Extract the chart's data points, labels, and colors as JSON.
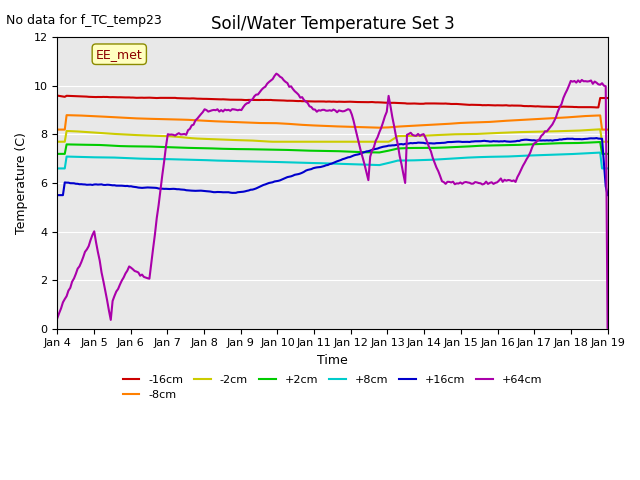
{
  "title": "Soil/Water Temperature Set 3",
  "xlabel": "Time",
  "ylabel": "Temperature (C)",
  "no_data_text": "No data for f_TC_temp23",
  "annotation_text": "EE_met",
  "xlim": [
    0,
    15
  ],
  "ylim": [
    0,
    12
  ],
  "yticks": [
    0,
    2,
    4,
    6,
    8,
    10,
    12
  ],
  "xtick_labels": [
    "Jan 4",
    "Jan 5",
    "Jan 6",
    "Jan 7",
    "Jan 8",
    "Jan 9",
    "Jan 10",
    "Jan 11",
    "Jan 12",
    "Jan 13",
    "Jan 14",
    "Jan 15",
    "Jan 16",
    "Jan 17",
    "Jan 18",
    "Jan 19"
  ],
  "background_color": "#e8e8e8",
  "series": {
    "-16cm": {
      "color": "#cc0000",
      "lw": 1.5
    },
    "-8cm": {
      "color": "#ff8000",
      "lw": 1.5
    },
    "-2cm": {
      "color": "#cccc00",
      "lw": 1.5
    },
    "+2cm": {
      "color": "#00cc00",
      "lw": 1.5
    },
    "+8cm": {
      "color": "#00cccc",
      "lw": 1.5
    },
    "+16cm": {
      "color": "#0000cc",
      "lw": 1.5
    },
    "+64cm": {
      "color": "#aa00aa",
      "lw": 1.5
    }
  },
  "legend_colors": {
    "-16cm": "#cc0000",
    "-8cm": "#ff8000",
    "-2cm": "#cccc00",
    "+2cm": "#00cc00",
    "+8cm": "#00cccc",
    "+16cm": "#0000cc",
    "+64cm": "#aa00aa"
  }
}
